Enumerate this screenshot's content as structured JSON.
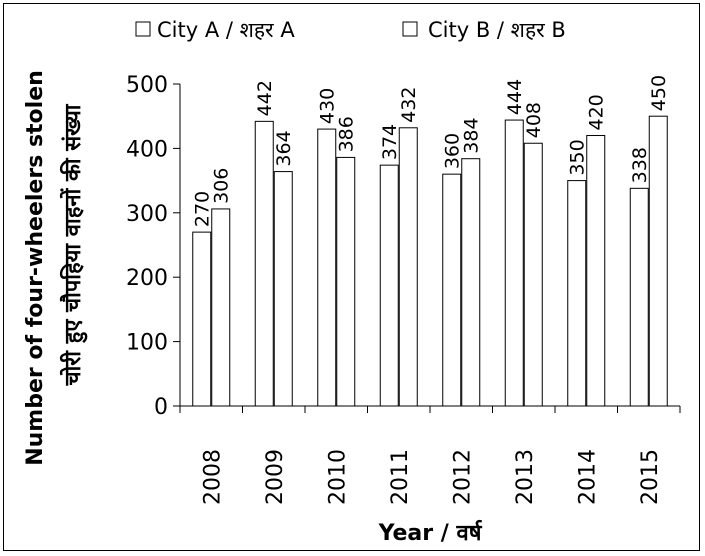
{
  "chart_data": {
    "type": "bar",
    "categories": [
      "2008",
      "2009",
      "2010",
      "2011",
      "2012",
      "2013",
      "2014",
      "2015"
    ],
    "series": [
      {
        "name": "City A / शहर A",
        "values": [
          270,
          442,
          430,
          374,
          360,
          444,
          350,
          338
        ]
      },
      {
        "name": "City B / शहर B",
        "values": [
          306,
          364,
          386,
          432,
          384,
          408,
          420,
          450
        ]
      }
    ],
    "xlabel": "Year / वर्ष",
    "ylabel_line1": "Number of four-wheelers stolen",
    "ylabel_line2": "चोरी हुए चौपहिया वाहनों की संख्या",
    "ylim": [
      0,
      500
    ],
    "yticks": [
      "0",
      "100",
      "200",
      "300",
      "400",
      "500"
    ],
    "legend_position": "top",
    "grid": false,
    "bar_fill": "#ffffff",
    "bar_stroke": "#000000"
  }
}
